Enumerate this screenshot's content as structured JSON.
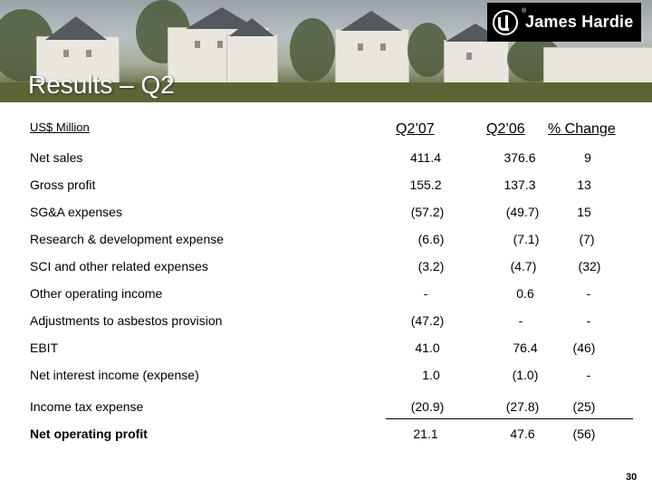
{
  "logo": {
    "text": "James Hardie",
    "registered": "®"
  },
  "title": "Results – Q2",
  "table": {
    "units": "US$ Million",
    "columns": [
      "Q2’07",
      "Q2’06",
      "% Change"
    ],
    "rows": [
      {
        "label": "Net sales",
        "values": [
          "411.4",
          "376.6",
          "9"
        ]
      },
      {
        "label": "Gross profit",
        "values": [
          "155.2",
          "137.3",
          "13"
        ]
      },
      {
        "label": "SG&A expenses",
        "values": [
          "(57.2)",
          "(49.7)",
          "15"
        ]
      },
      {
        "label": "Research & development expense",
        "values": [
          "(6.6)",
          "(7.1)",
          "(7)"
        ]
      },
      {
        "label": "SCI and other related expenses",
        "values": [
          "(3.2)",
          "(4.7)",
          "(32)"
        ]
      },
      {
        "label": "Other operating income",
        "values": [
          "-",
          "0.6",
          "-"
        ]
      },
      {
        "label": "Adjustments to asbestos provision",
        "values": [
          "(47.2)",
          "-",
          "-"
        ]
      },
      {
        "label": "EBIT",
        "values": [
          "41.0",
          "76.4",
          "(46)"
        ]
      },
      {
        "label": "Net interest income (expense)",
        "values": [
          "1.0",
          "(1.0)",
          "-"
        ]
      },
      {
        "label": "Income tax expense",
        "values": [
          "(20.9)",
          "(27.8)",
          "(25)"
        ]
      },
      {
        "label": "Net operating profit",
        "values": [
          "21.1",
          "47.6",
          "(56)"
        ]
      }
    ]
  },
  "page_number": "30"
}
